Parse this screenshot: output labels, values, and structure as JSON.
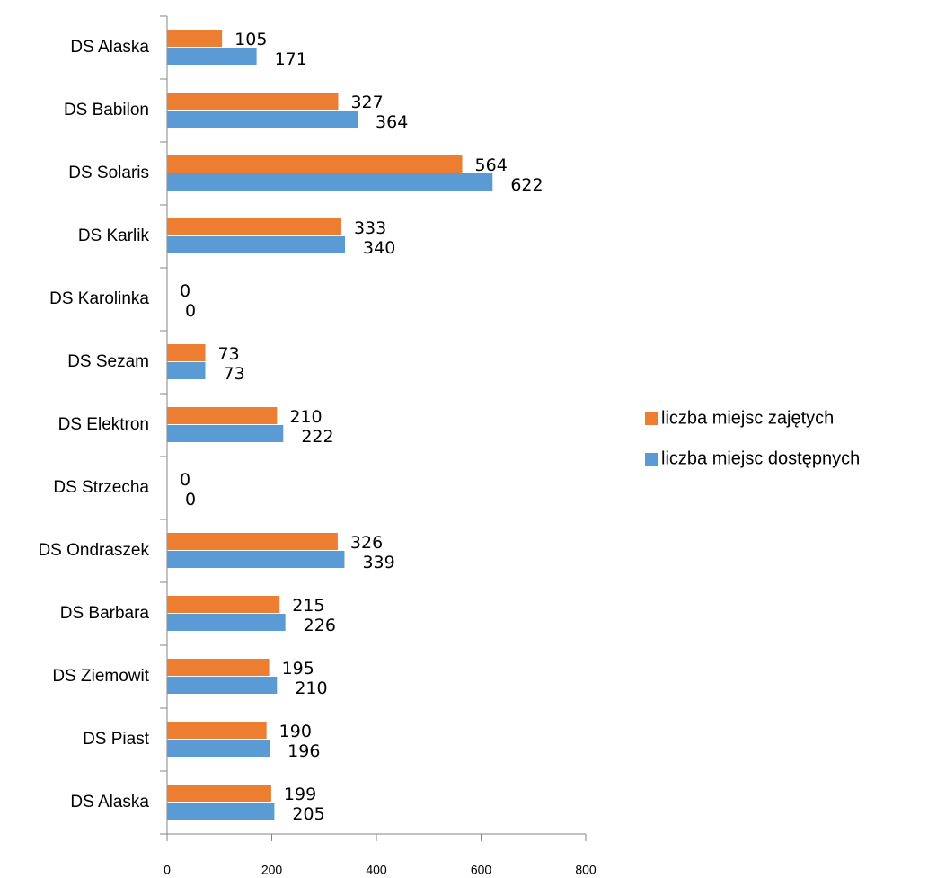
{
  "chart_data": {
    "type": "barh",
    "categories": [
      "DS  Alaska",
      "DS Babilon",
      "DS Solaris",
      "DS Karlik",
      "DS Karolinka",
      "DS Sezam",
      "DS Elektron",
      "DS Strzecha",
      "DS Ondraszek",
      "DS Barbara",
      "DS Ziemowit",
      "DS Piast",
      "DS Alaska"
    ],
    "series": [
      {
        "name": "liczba miejsc zajętych",
        "color": "#ed7d31",
        "values": [
          105,
          327,
          564,
          333,
          0,
          73,
          210,
          0,
          326,
          215,
          195,
          190,
          199
        ]
      },
      {
        "name": "liczba miejsc dostępnych",
        "color": "#5b9bd5",
        "values": [
          171,
          364,
          622,
          340,
          0,
          73,
          222,
          0,
          339,
          226,
          210,
          196,
          205
        ]
      }
    ],
    "xlim": [
      0,
      800
    ],
    "xticks": [
      0,
      200,
      400,
      600,
      800
    ],
    "legend": "right"
  }
}
